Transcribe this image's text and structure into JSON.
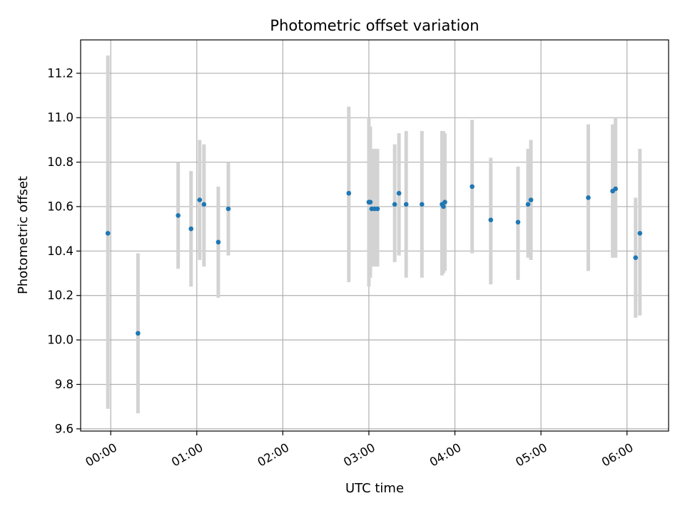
{
  "chart_data": {
    "type": "scatter",
    "title": "Photometric offset variation",
    "xlabel": "UTC time",
    "ylabel": "Photometric offset",
    "xlim": [
      "23:39",
      "06:29"
    ],
    "ylim": [
      9.59,
      11.35
    ],
    "x_ticks": [
      "00:00",
      "01:00",
      "02:00",
      "03:00",
      "04:00",
      "05:00",
      "06:00"
    ],
    "y_ticks": [
      "9.6",
      "9.8",
      "10.0",
      "10.2",
      "10.4",
      "10.6",
      "10.8",
      "11.0",
      "11.2"
    ],
    "grid": true,
    "marker_color": "#1f77b4",
    "errorbar_color": "#d3d3d3",
    "points": [
      {
        "x": "23:58",
        "y": 10.48,
        "low": 9.69,
        "high": 11.28
      },
      {
        "x": "00:19",
        "y": 10.03,
        "low": 9.67,
        "high": 10.39
      },
      {
        "x": "00:47",
        "y": 10.56,
        "low": 10.32,
        "high": 10.8
      },
      {
        "x": "00:56",
        "y": 10.5,
        "low": 10.24,
        "high": 10.76
      },
      {
        "x": "01:02",
        "y": 10.63,
        "low": 10.36,
        "high": 10.9
      },
      {
        "x": "01:05",
        "y": 10.61,
        "low": 10.33,
        "high": 10.88
      },
      {
        "x": "01:15",
        "y": 10.44,
        "low": 10.19,
        "high": 10.69
      },
      {
        "x": "01:22",
        "y": 10.59,
        "low": 10.38,
        "high": 10.8
      },
      {
        "x": "02:46",
        "y": 10.66,
        "low": 10.26,
        "high": 11.05
      },
      {
        "x": "03:00",
        "y": 10.62,
        "low": 10.24,
        "high": 11.0
      },
      {
        "x": "03:01",
        "y": 10.62,
        "low": 10.28,
        "high": 10.96
      },
      {
        "x": "03:02",
        "y": 10.59,
        "low": 10.33,
        "high": 10.86
      },
      {
        "x": "03:04",
        "y": 10.59,
        "low": 10.33,
        "high": 10.86
      },
      {
        "x": "03:06",
        "y": 10.59,
        "low": 10.33,
        "high": 10.86
      },
      {
        "x": "03:18",
        "y": 10.61,
        "low": 10.35,
        "high": 10.88
      },
      {
        "x": "03:21",
        "y": 10.66,
        "low": 10.38,
        "high": 10.93
      },
      {
        "x": "03:26",
        "y": 10.61,
        "low": 10.28,
        "high": 10.94
      },
      {
        "x": "03:37",
        "y": 10.61,
        "low": 10.28,
        "high": 10.94
      },
      {
        "x": "03:51",
        "y": 10.61,
        "low": 10.29,
        "high": 10.94
      },
      {
        "x": "03:52",
        "y": 10.6,
        "low": 10.3,
        "high": 10.94
      },
      {
        "x": "03:53",
        "y": 10.62,
        "low": 10.31,
        "high": 10.93
      },
      {
        "x": "04:12",
        "y": 10.69,
        "low": 10.39,
        "high": 10.99
      },
      {
        "x": "04:25",
        "y": 10.54,
        "low": 10.25,
        "high": 10.82
      },
      {
        "x": "04:44",
        "y": 10.53,
        "low": 10.27,
        "high": 10.78
      },
      {
        "x": "04:51",
        "y": 10.61,
        "low": 10.37,
        "high": 10.86
      },
      {
        "x": "04:53",
        "y": 10.63,
        "low": 10.36,
        "high": 10.9
      },
      {
        "x": "05:33",
        "y": 10.64,
        "low": 10.31,
        "high": 10.97
      },
      {
        "x": "05:50",
        "y": 10.67,
        "low": 10.37,
        "high": 10.97
      },
      {
        "x": "05:52",
        "y": 10.68,
        "low": 10.37,
        "high": 11.0
      },
      {
        "x": "06:06",
        "y": 10.37,
        "low": 10.1,
        "high": 10.64
      },
      {
        "x": "06:09",
        "y": 10.48,
        "low": 10.11,
        "high": 10.86
      }
    ]
  }
}
